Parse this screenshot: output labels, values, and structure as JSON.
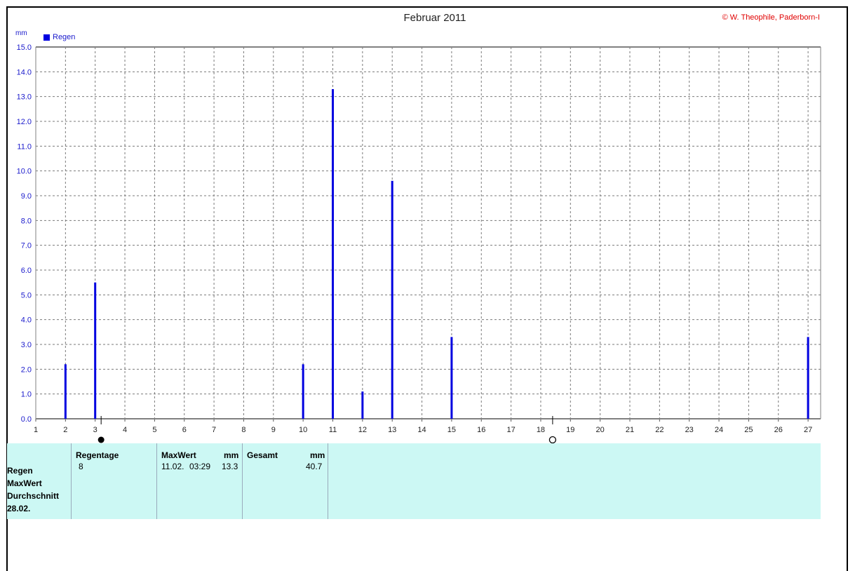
{
  "title": "Februar 2011",
  "copyright": "© W. Theophile, Paderborn-I",
  "unit": "mm",
  "legend_label": "Regen",
  "colors": {
    "bar": "#0000e0",
    "axis_text": "#1a1acc",
    "grid": "#7a7a7a",
    "table_bg": "#ccf8f4",
    "copyright": "#e00000"
  },
  "chart_data": {
    "type": "bar",
    "title": "Februar 2011",
    "ylabel": "mm",
    "xlabel": "",
    "categories": [
      1,
      2,
      3,
      4,
      5,
      6,
      7,
      8,
      9,
      10,
      11,
      12,
      13,
      14,
      15,
      16,
      17,
      18,
      19,
      20,
      21,
      22,
      23,
      24,
      25,
      26,
      27
    ],
    "series": [
      {
        "name": "Regen",
        "values": [
          0,
          2.2,
          5.5,
          0,
          0,
          0,
          0,
          0,
          0,
          2.2,
          13.3,
          1.1,
          9.6,
          0,
          3.3,
          0,
          0,
          0,
          0,
          0,
          0,
          0,
          0,
          0,
          0,
          0,
          3.3
        ]
      }
    ],
    "ylim": [
      0,
      15
    ],
    "yticks": [
      "0.0",
      "1.0",
      "2.0",
      "3.0",
      "4.0",
      "5.0",
      "6.0",
      "7.0",
      "8.0",
      "9.0",
      "10.0",
      "11.0",
      "12.0",
      "13.0",
      "14.0",
      "15.0"
    ],
    "grid": true,
    "legend": "top-left",
    "moon_phases": [
      {
        "day": 3.2,
        "phase": "new-moon"
      },
      {
        "day": 18.4,
        "phase": "full-moon"
      }
    ]
  },
  "stats": {
    "row_labels": [
      "Regen",
      "MaxWert",
      "Durchschnitt",
      "28.02."
    ],
    "regentage": {
      "header": "Regentage",
      "value": "8"
    },
    "maxwert": {
      "header": "MaxWert",
      "unit": "mm",
      "date": "11.02.",
      "time": "03:29",
      "value": "13.3"
    },
    "gesamt": {
      "header": "Gesamt",
      "unit": "mm",
      "value": "40.7"
    }
  }
}
